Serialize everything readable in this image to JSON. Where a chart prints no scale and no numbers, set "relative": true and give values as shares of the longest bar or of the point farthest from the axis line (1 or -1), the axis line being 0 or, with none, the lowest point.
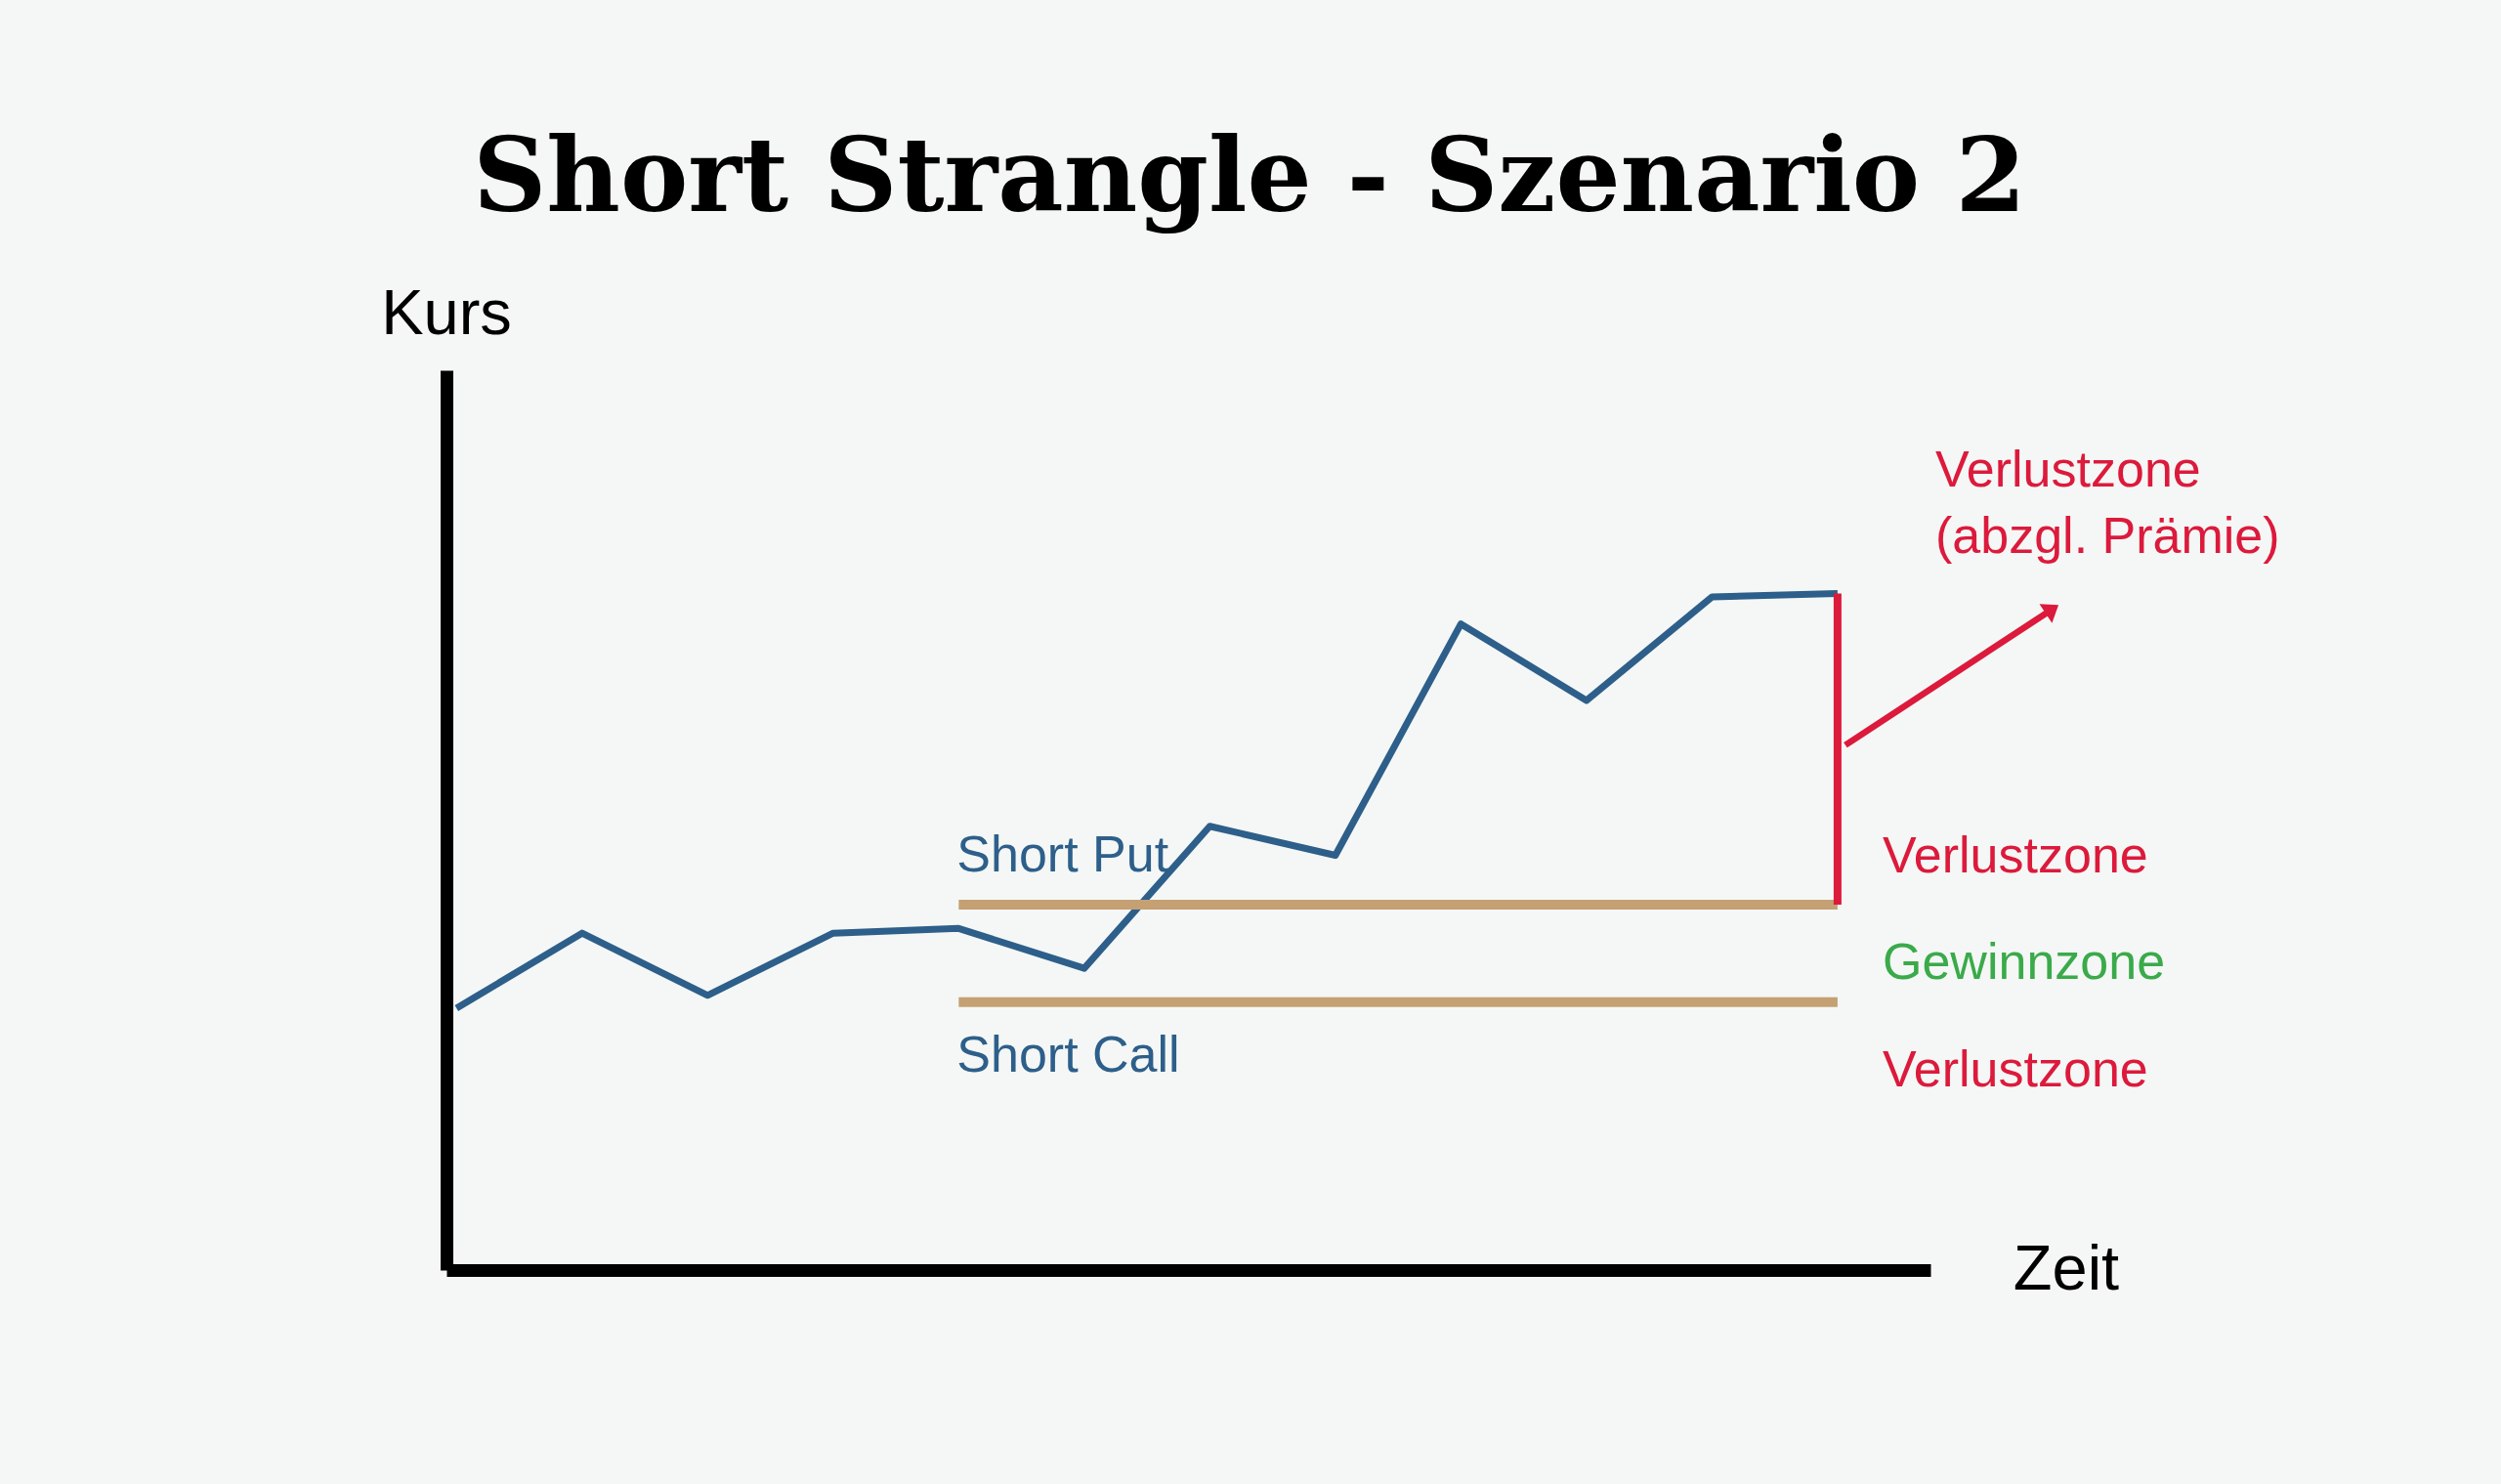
{
  "chart_data": {
    "type": "line",
    "title": "Short Strangle - Szenario 2",
    "xlabel": "Zeit",
    "ylabel": "Kurs",
    "relative": true,
    "categories": [
      null,
      null,
      null,
      null,
      null,
      null,
      null,
      null,
      null,
      null,
      null,
      null
    ],
    "series": [
      {
        "color": "#2d5f8a",
        "values": [
          0.387,
          0.498,
          0.406,
          0.498,
          0.505,
          0.446,
          0.656,
          0.613,
          0.955,
          0.842,
          0.995,
          1
        ]
      },
      {
        "name": "Short Put",
        "color": "#c4a073",
        "values": [
          null,
          null,
          null,
          null,
          0.54,
          0.54,
          0.54,
          0.54,
          0.54,
          0.54,
          0.54,
          0.54
        ]
      },
      {
        "name": "Short Call",
        "color": "#c4a073",
        "values": [
          null,
          null,
          null,
          null,
          0.396,
          0.396,
          0.396,
          0.396,
          0.396,
          0.396,
          0.396,
          0.396
        ]
      }
    ],
    "annotations": [
      "Verlustzone\n(abzgl. Prämie)",
      "Verlustzone",
      "Gewinnzone",
      "Verlustzone"
    ]
  }
}
